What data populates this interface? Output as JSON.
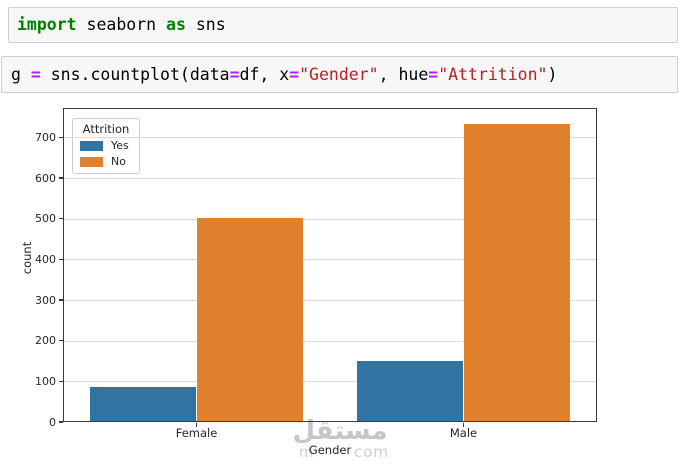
{
  "page": {
    "background": "#ffffff"
  },
  "code_cells": [
    {
      "name": "import-cell",
      "tokens": [
        {
          "text": "import",
          "style": "keyword"
        },
        {
          "text": " seaborn ",
          "style": "plain"
        },
        {
          "text": "as",
          "style": "keyword"
        },
        {
          "text": " sns",
          "style": "plain"
        }
      ]
    },
    {
      "name": "countplot-cell",
      "tokens": [
        {
          "text": "g ",
          "style": "plain"
        },
        {
          "text": "=",
          "style": "operator"
        },
        {
          "text": " sns.countplot(data",
          "style": "plain"
        },
        {
          "text": "=",
          "style": "operator"
        },
        {
          "text": "df, x",
          "style": "plain"
        },
        {
          "text": "=",
          "style": "operator"
        },
        {
          "text": "\"Gender\"",
          "style": "string"
        },
        {
          "text": ", hue",
          "style": "plain"
        },
        {
          "text": "=",
          "style": "operator"
        },
        {
          "text": "\"Attrition\"",
          "style": "string"
        },
        {
          "text": ")",
          "style": "plain"
        }
      ]
    }
  ],
  "syntax_colors": {
    "keyword": "#008000",
    "operator": "#AA22FF",
    "string": "#BA2121",
    "plain": "#000000"
  },
  "chart_data": {
    "type": "bar",
    "title": "",
    "xlabel": "Gender",
    "ylabel": "count",
    "categories": [
      "Female",
      "Male"
    ],
    "series": [
      {
        "name": "Yes",
        "color": "#3274A1",
        "values": [
          87,
          150
        ]
      },
      {
        "name": "No",
        "color": "#E1812C",
        "values": [
          501,
          732
        ]
      }
    ],
    "legend": {
      "title": "Attrition",
      "position": "upper-left"
    },
    "y_ticks": [
      0,
      100,
      200,
      300,
      400,
      500,
      600,
      700
    ],
    "ylim": [
      0,
      772
    ],
    "grid": true,
    "grid_color": "#dcdcdc",
    "spine_color": "#3a3a3a"
  },
  "watermark": {
    "arabic_text": "مستقل",
    "latin_left": "m",
    "latin_right": "com",
    "color": "#c6c6c6"
  }
}
